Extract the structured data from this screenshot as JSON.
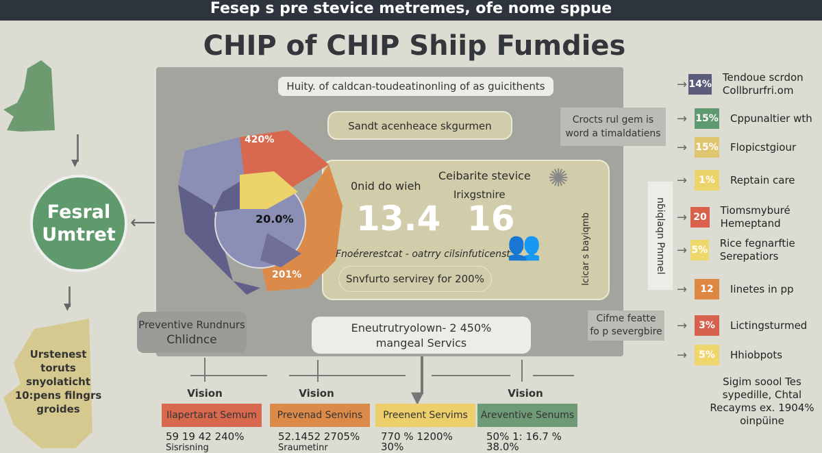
{
  "header": {
    "banner": "Fesep s pre stevice metremes, ofe nome sppue",
    "title": "CHIP of CHIP Shiip Fumdies"
  },
  "center": {
    "subtitle": "Huity. of caldcan-toudeatinonling of as guicithents",
    "bubble": "Sandt acenheace skgurmen",
    "map_labels": [
      "420%",
      "20.0%",
      "201%"
    ],
    "stat_left_label": "0nid do wieh",
    "stat_right_label_1": "Ceibarite stevice",
    "stat_right_label_2": "Irixgstnire",
    "big_number_1": "13.4",
    "big_number_2": "16",
    "footnote": "Fnoérerestcat - oatrry cilsinfuticenst",
    "pill": "Snvfurto servirey for 200%",
    "vertical_text": "Icicar s bayiqmb",
    "side_note": "Crocts rul gem is word a timaldatiens",
    "side_vertical": "nɓiqlaqn Pnnnel"
  },
  "left": {
    "circle_label": "Fesral Umtret",
    "map_text": "Urstenest toruts snyolaticht 10:pens filngrs groides"
  },
  "lower": {
    "preventive_box": [
      "Preventive Rundnurs",
      "Chlidnce"
    ],
    "services_box": [
      "Eneutrutryolown- 2 450%",
      "mangeal Servics"
    ],
    "right_note": [
      "Cifme featte",
      "fo p severgbire"
    ],
    "categories": [
      {
        "vision": "Vision",
        "label": "Ilapertarat Semum",
        "stat": "59 19 42 240%",
        "stat2": "Sisrisning",
        "color": "#d9694e"
      },
      {
        "vision": "Vision",
        "label": "Prevenad Senvins",
        "stat": "52.1452 2705%",
        "stat2": "Sraumetinr",
        "color": "#dc8a4a"
      },
      {
        "vision": "",
        "label": "Preenent Servims",
        "stat": "770 % 1200%",
        "stat2": "30%",
        "color": "#eccf6a"
      },
      {
        "vision": "Vision",
        "label": "Areventive Senums",
        "stat": "50% 1: 16.7 %",
        "stat2": "38.0%",
        "color": "#6f9a76"
      }
    ]
  },
  "legend": [
    {
      "value": "14%",
      "text": "Tendoue scrdon Collbrurfri.om",
      "color": "#5b5b7c"
    },
    {
      "value": "15%",
      "text": "Cppunaltier wth",
      "color": "#5f9970"
    },
    {
      "value": "15%",
      "text": "Flopicstgiour",
      "color": "#e0c570"
    },
    {
      "value": "1%",
      "text": "Reptain care",
      "color": "#ecd36a"
    },
    {
      "value": "20",
      "text": "Tiomsmyburé Hemeptand",
      "color": "#d9604a"
    },
    {
      "value": "5%",
      "text": "Rice fegnarftie Serepatiors",
      "color": "#efd86a"
    },
    {
      "value": "12",
      "text": "Iinetes in pp",
      "color": "#de8744"
    },
    {
      "value": "3%",
      "text": "Lictingsturmed",
      "color": "#d6614e"
    },
    {
      "value": "5%",
      "text": "Hhiobpots",
      "color": "#eed66c"
    }
  ],
  "legend_footer": "Sigim soool Tes sypedille, Chtal Recayms  ex. 1904% oinpüine"
}
